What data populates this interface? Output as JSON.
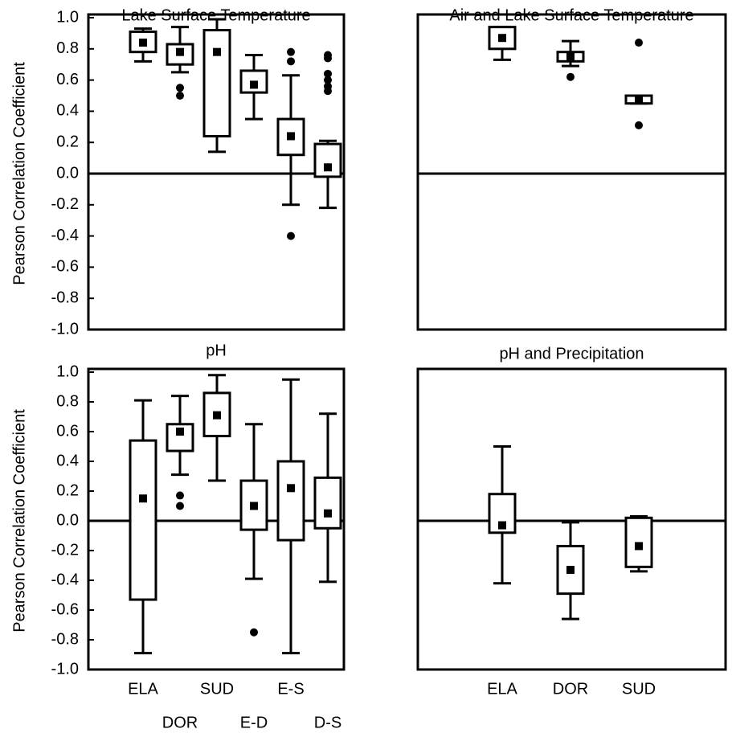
{
  "chart_data": [
    {
      "type": "box",
      "title": "Lake Surface Temperature",
      "y_label": "Pearson Correlation Coefficient",
      "categories": [
        null,
        null,
        null,
        null,
        null,
        null
      ],
      "boxes": [
        {
          "whisker_low": 0.72,
          "q1": 0.78,
          "q3": 0.91,
          "whisker_high": 0.93,
          "mean": 0.84
        },
        {
          "whisker_low": 0.65,
          "q1": 0.7,
          "q3": 0.83,
          "whisker_high": 0.94,
          "mean": 0.78,
          "outliers": [
            0.55,
            0.5
          ]
        },
        {
          "whisker_low": 0.14,
          "q1": 0.24,
          "q3": 0.92,
          "whisker_high": 0.99,
          "mean": 0.78
        },
        {
          "whisker_low": 0.35,
          "q1": 0.52,
          "q3": 0.66,
          "whisker_high": 0.76,
          "mean": 0.57
        },
        {
          "whisker_low": -0.2,
          "q1": 0.12,
          "q3": 0.35,
          "whisker_high": 0.63,
          "mean": 0.24,
          "outliers": [
            0.78,
            0.72,
            -0.4
          ]
        },
        {
          "whisker_low": -0.22,
          "q1": -0.02,
          "q3": 0.19,
          "whisker_high": 0.21,
          "mean": 0.04,
          "outliers": [
            0.76,
            0.74,
            0.64,
            0.6,
            0.56,
            0.53
          ]
        }
      ],
      "ylim": [
        -1,
        1
      ],
      "yticks": [
        {
          "value": -1,
          "label": "-1.0"
        },
        {
          "value": -0.8,
          "label": "-0.8"
        },
        {
          "value": -0.6,
          "label": "-0.6"
        },
        {
          "value": -0.4,
          "label": "-0.4"
        },
        {
          "value": -0.2,
          "label": "-0.2"
        },
        {
          "value": 0,
          "label": "0.0"
        },
        {
          "value": 0.2,
          "label": "0.2"
        },
        {
          "value": 0.4,
          "label": "0.4"
        },
        {
          "value": 0.6,
          "label": "0.6"
        },
        {
          "value": 0.8,
          "label": "0.8"
        },
        {
          "value": 1,
          "label": "1.0"
        }
      ],
      "reference_line": 0
    },
    {
      "type": "box",
      "title": "Air and Lake Surface Temperature",
      "categories": [
        null,
        null,
        null
      ],
      "boxes": [
        {
          "whisker_low": 0.73,
          "q1": 0.8,
          "q3": 0.94,
          "whisker_high": 0.94,
          "mean": 0.87
        },
        {
          "whisker_low": 0.69,
          "q1": 0.72,
          "q3": 0.78,
          "whisker_high": 0.85,
          "mean": 0.75,
          "outliers": [
            0.62
          ]
        },
        {
          "whisker_low": 0.45,
          "q1": 0.45,
          "q3": 0.5,
          "whisker_high": 0.5,
          "mean": 0.47,
          "outliers": [
            0.84,
            0.31
          ]
        }
      ],
      "ylim": [
        -1,
        1
      ],
      "reference_line": 0
    },
    {
      "type": "box",
      "title": "pH",
      "y_label": "Pearson Correlation Coefficient",
      "categories": [
        "ELA",
        "DOR",
        "SUD",
        "E-D",
        "E-S",
        "D-S"
      ],
      "boxes": [
        {
          "whisker_low": -0.89,
          "q1": -0.53,
          "q3": 0.54,
          "whisker_high": 0.81,
          "mean": 0.15
        },
        {
          "whisker_low": 0.31,
          "q1": 0.47,
          "q3": 0.65,
          "whisker_high": 0.84,
          "mean": 0.6,
          "outliers": [
            0.17,
            0.1
          ]
        },
        {
          "whisker_low": 0.27,
          "q1": 0.57,
          "q3": 0.86,
          "whisker_high": 0.98,
          "mean": 0.71
        },
        {
          "whisker_low": -0.39,
          "q1": -0.06,
          "q3": 0.27,
          "whisker_high": 0.65,
          "mean": 0.1,
          "outliers": [
            -0.75
          ]
        },
        {
          "whisker_low": -0.89,
          "q1": -0.13,
          "q3": 0.4,
          "whisker_high": 0.95,
          "mean": 0.22
        },
        {
          "whisker_low": -0.41,
          "q1": -0.05,
          "q3": 0.29,
          "whisker_high": 0.72,
          "mean": 0.05
        }
      ],
      "ylim": [
        -1,
        1
      ],
      "yticks": [
        {
          "value": -1,
          "label": "-1.0"
        },
        {
          "value": -0.8,
          "label": "-0.8"
        },
        {
          "value": -0.6,
          "label": "-0.6"
        },
        {
          "value": -0.4,
          "label": "-0.4"
        },
        {
          "value": -0.2,
          "label": "-0.2"
        },
        {
          "value": 0,
          "label": "0.0"
        },
        {
          "value": 0.2,
          "label": "0.2"
        },
        {
          "value": 0.4,
          "label": "0.4"
        },
        {
          "value": 0.6,
          "label": "0.6"
        },
        {
          "value": 0.8,
          "label": "0.8"
        },
        {
          "value": 1,
          "label": "1.0"
        }
      ],
      "reference_line": 0
    },
    {
      "type": "box",
      "title": "pH and Precipitation",
      "categories": [
        "ELA",
        "DOR",
        "SUD"
      ],
      "boxes": [
        {
          "whisker_low": -0.42,
          "q1": -0.08,
          "q3": 0.18,
          "whisker_high": 0.5,
          "mean": -0.03
        },
        {
          "whisker_low": -0.66,
          "q1": -0.49,
          "q3": -0.17,
          "whisker_high": -0.01,
          "mean": -0.33
        },
        {
          "whisker_low": -0.34,
          "q1": -0.31,
          "q3": 0.02,
          "whisker_high": 0.03,
          "mean": -0.17
        }
      ],
      "ylim": [
        -1,
        1
      ],
      "reference_line": 0
    }
  ]
}
